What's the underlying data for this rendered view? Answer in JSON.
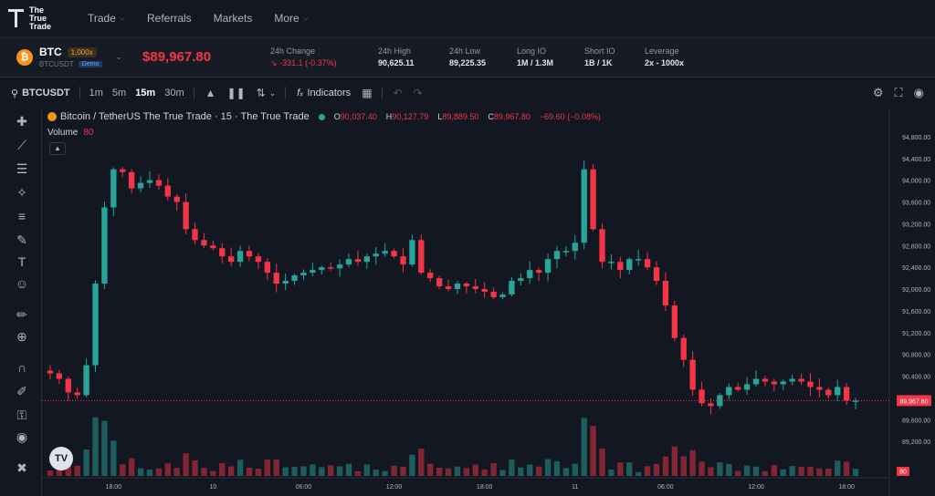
{
  "nav": {
    "logo_lines": [
      "The",
      "True",
      "Trade"
    ],
    "items": [
      {
        "label": "Trade",
        "has_dropdown": true
      },
      {
        "label": "Referrals",
        "has_dropdown": false
      },
      {
        "label": "Markets",
        "has_dropdown": false
      },
      {
        "label": "More",
        "has_dropdown": true
      }
    ]
  },
  "ticker": {
    "symbol": "BTC",
    "leverage_badge": "1,000x",
    "pair": "BTCUSDT",
    "mode_badge": "Demo",
    "price": "$89,967.80",
    "stats": [
      {
        "label": "24h Change",
        "value": "-331.1 (-0.37%)",
        "negative": true
      },
      {
        "label": "24h High",
        "value": "90,625.11"
      },
      {
        "label": "24h Low",
        "value": "89,225.35"
      },
      {
        "label": "Long IO",
        "value": "1M / 1.3M"
      },
      {
        "label": "Short IO",
        "value": "1B / 1K"
      },
      {
        "label": "Leverage",
        "value": "2x - 1000x"
      }
    ]
  },
  "toolbar": {
    "symbol": "BTCUSDT",
    "intervals": [
      "1m",
      "5m",
      "15m",
      "30m"
    ],
    "active_interval": "15m",
    "indicators_label": "Indicators"
  },
  "legend": {
    "title": "Bitcoin / TetherUS The True Trade · 15 · The True Trade",
    "o_label": "O",
    "o": "90,037.40",
    "h_label": "H",
    "h": "90,127.79",
    "l_label": "L",
    "l": "89,889.50",
    "c_label": "C",
    "c": "89,967.80",
    "change": "−69.60 (−0.08%)",
    "volume_label": "Volume",
    "volume_value": "80"
  },
  "chart_data": {
    "type": "candlestick",
    "y_ticks": [
      "94,800.00",
      "94,400.00",
      "94,000.00",
      "93,600.00",
      "93,200.00",
      "92,800.00",
      "92,400.00",
      "92,000.00",
      "91,600.00",
      "91,200.00",
      "90,800.00",
      "90,400.00",
      "89,600.00",
      "89,200.00"
    ],
    "y_tick_values": [
      94800,
      94400,
      94000,
      93600,
      93200,
      92800,
      92400,
      92000,
      91600,
      91200,
      90800,
      90400,
      89600,
      89200
    ],
    "ylim": [
      88800,
      95200
    ],
    "x_ticks": [
      "18:00",
      "10",
      "06:00",
      "12:00",
      "18:00",
      "11",
      "06:00",
      "12:00",
      "18:00"
    ],
    "x_tick_index": [
      7,
      18,
      28,
      38,
      48,
      58,
      68,
      78,
      88
    ],
    "n_candles": 90,
    "last_price_label": "89,967.80",
    "volume_last_label": "80",
    "price_path": [
      90500,
      90450,
      90350,
      90100,
      90050,
      90600,
      92100,
      93500,
      94200,
      94150,
      93850,
      93950,
      94000,
      93900,
      93700,
      93600,
      93100,
      92900,
      92800,
      92750,
      92600,
      92500,
      92700,
      92600,
      92500,
      92300,
      92100,
      92150,
      92250,
      92300,
      92350,
      92400,
      92380,
      92450,
      92550,
      92500,
      92600,
      92650,
      92700,
      92600,
      92450,
      92900,
      92300,
      92200,
      92050,
      92000,
      92100,
      92050,
      92000,
      91950,
      91850,
      91900,
      92150,
      92200,
      92350,
      92300,
      92550,
      92700,
      92700,
      92850,
      94200,
      93100,
      92500,
      92500,
      92350,
      92550,
      92550,
      92400,
      92150,
      91700,
      91100,
      90700,
      90150,
      89900,
      89850,
      90050,
      90200,
      90150,
      90250,
      90350,
      90300,
      90250,
      90300,
      90350,
      90300,
      90200,
      90150,
      90050,
      90200,
      89950,
      89950
    ]
  }
}
